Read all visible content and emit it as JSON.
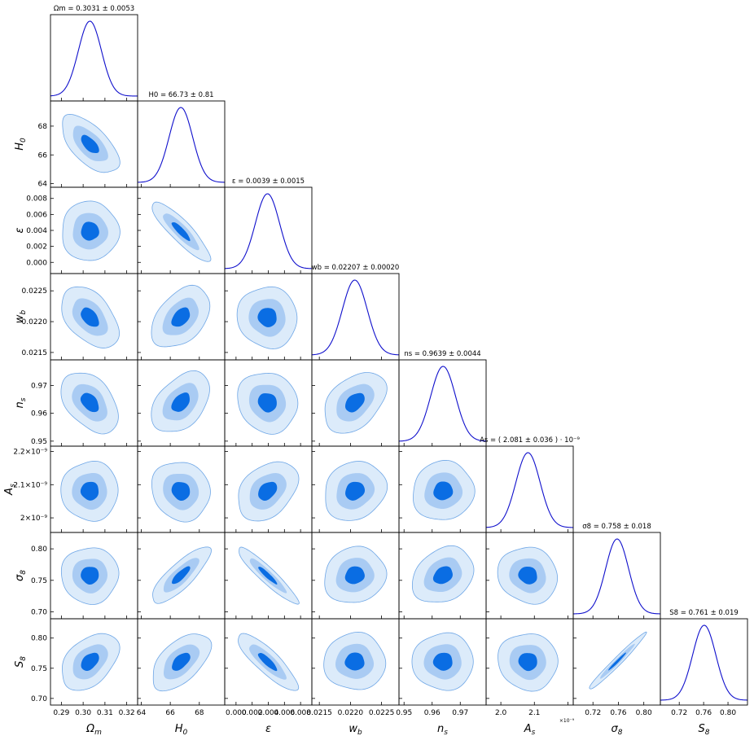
{
  "chart_data": {
    "type": "corner",
    "contour_colors": [
      "#dcebfa",
      "#a9cbf3",
      "#0a6de3"
    ],
    "contour_edge_color": "#6ea6e6",
    "line_color": "#1010cc",
    "scale_note": "×10⁻⁹",
    "params": [
      {
        "key": "om",
        "label": "Ωm",
        "title": "Ωm = 0.3031 ± 0.0053",
        "mean": 0.3031,
        "sigma": 0.0053,
        "range": [
          0.285,
          0.325
        ],
        "ticks": [
          0.29,
          0.3,
          0.31,
          0.32
        ],
        "tick_labels": [
          "0.29",
          "0.30",
          "0.31",
          "0.32"
        ]
      },
      {
        "key": "h0",
        "label": "H0",
        "title": "H0 = 66.73 ± 0.81",
        "mean": 66.73,
        "sigma": 0.81,
        "range": [
          63.75,
          69.75
        ],
        "ticks": [
          64,
          66,
          68
        ],
        "tick_labels": [
          "64",
          "66",
          "68"
        ]
      },
      {
        "key": "eps",
        "label": "ε",
        "title": "ε = 0.0039 ± 0.0015",
        "mean": 0.0039,
        "sigma": 0.0015,
        "range": [
          -0.0014,
          0.0094
        ],
        "ticks": [
          0.0,
          0.002,
          0.004,
          0.006,
          0.008
        ],
        "tick_labels": [
          "0.000",
          "0.002",
          "0.004",
          "0.006",
          "0.008"
        ]
      },
      {
        "key": "wb",
        "label": "wb",
        "title": "wb = 0.02207 ± 0.00020",
        "mean": 0.02207,
        "sigma": 0.0002,
        "range": [
          0.02138,
          0.02278
        ],
        "ticks": [
          0.0215,
          0.022,
          0.0225
        ],
        "tick_labels": [
          "0.0215",
          "0.0220",
          "0.0225"
        ]
      },
      {
        "key": "ns",
        "label": "ns",
        "title": "ns = 0.9639 ± 0.0044",
        "mean": 0.9639,
        "sigma": 0.0044,
        "range": [
          0.9482,
          0.9792
        ],
        "ticks": [
          0.95,
          0.96,
          0.97
        ],
        "tick_labels": [
          "0.95",
          "0.96",
          "0.97"
        ]
      },
      {
        "key": "as",
        "label": "As",
        "title": "As = ( 2.081 ± 0.036 ) · 10⁻⁹",
        "mean": 2.081,
        "sigma": 0.036,
        "range": [
          1.956,
          2.216
        ],
        "ticks": [
          2.0,
          2.1,
          2.2
        ],
        "tick_labels": [
          "2×10⁻⁹",
          "2.1×10⁻⁹",
          "2.2×10⁻⁹"
        ],
        "x_tick_labels": [
          "2.0",
          "2.1"
        ]
      },
      {
        "key": "s8l",
        "label": "σ8",
        "title": "σ8 = 0.758 ± 0.018",
        "mean": 0.758,
        "sigma": 0.018,
        "range": [
          0.689,
          0.826
        ],
        "ticks": [
          0.72,
          0.76,
          0.8
        ],
        "tick_labels": [
          "0.72",
          "0.76",
          "0.80"
        ],
        "y_ticks": [
          0.7,
          0.75,
          0.8
        ],
        "y_tick_labels": [
          "0.70",
          "0.75",
          "0.80"
        ]
      },
      {
        "key": "S8",
        "label": "S8",
        "title": "S8 = 0.761 ± 0.019",
        "mean": 0.761,
        "sigma": 0.019,
        "range": [
          0.689,
          0.832
        ],
        "ticks": [
          0.72,
          0.76,
          0.8
        ],
        "tick_labels": [
          "0.72",
          "0.76",
          "0.80"
        ],
        "y_ticks": [
          0.7,
          0.75,
          0.8
        ],
        "y_tick_labels": [
          "0.70",
          "0.75",
          "0.80"
        ]
      }
    ],
    "correlations": {
      "h0|om": -0.62,
      "eps|om": 0.0,
      "eps|h0": -0.88,
      "wb|om": -0.45,
      "wb|h0": 0.42,
      "wb|eps": -0.05,
      "ns|om": -0.42,
      "ns|h0": 0.42,
      "ns|eps": -0.1,
      "ns|wb": 0.4,
      "as|om": 0.0,
      "as|h0": -0.1,
      "as|eps": 0.35,
      "as|wb": 0.15,
      "as|ns": 0.05,
      "s8l|om": 0.0,
      "s8l|h0": 0.82,
      "s8l|eps": -0.93,
      "s8l|wb": 0.1,
      "s8l|ns": 0.25,
      "s8l|as": -0.1,
      "S8|om": 0.42,
      "S8|h0": 0.55,
      "S8|eps": -0.85,
      "S8|wb": 0.0,
      "S8|ns": 0.0,
      "S8|as": -0.05,
      "S8|s8l": 0.98
    }
  }
}
